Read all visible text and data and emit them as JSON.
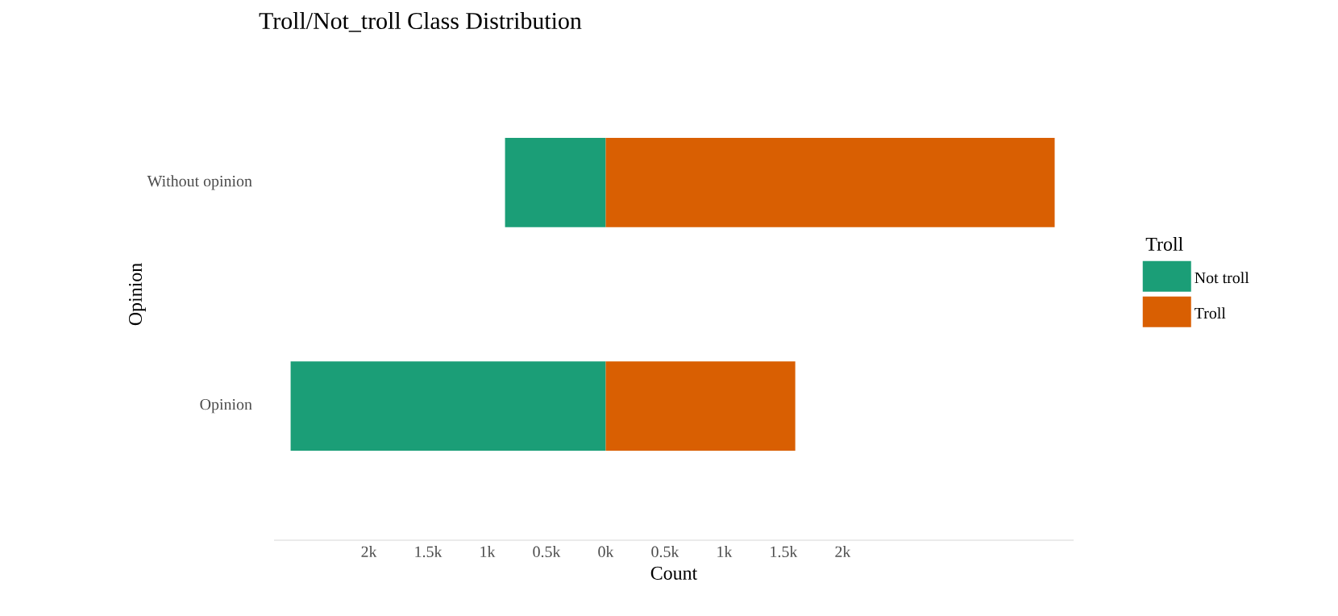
{
  "chart_data": {
    "type": "bar",
    "orientation": "horizontal",
    "title": "Troll/Not_troll Class Distribution",
    "xlabel": "Count",
    "ylabel": "Opinion",
    "legend_title": "Troll",
    "categories": [
      "Without opinion",
      "Opinion"
    ],
    "series": [
      {
        "name": "Not troll",
        "color": "#1b9e77",
        "values": [
          -850,
          -2660
        ]
      },
      {
        "name": "Troll",
        "color": "#d95f02",
        "values": [
          3790,
          1600
        ]
      }
    ],
    "stacked": true,
    "xlim": [
      -2800,
      3950
    ],
    "xticks": [
      {
        "value": -2000,
        "label": "2k"
      },
      {
        "value": -1500,
        "label": "1.5k"
      },
      {
        "value": -1000,
        "label": "1k"
      },
      {
        "value": -500,
        "label": "0.5k"
      },
      {
        "value": 0,
        "label": "0k"
      },
      {
        "value": 500,
        "label": "0.5k"
      },
      {
        "value": 1000,
        "label": "1k"
      },
      {
        "value": 1500,
        "label": "1.5k"
      },
      {
        "value": 2000,
        "label": "2k"
      }
    ],
    "grid": false,
    "legend": "right"
  }
}
